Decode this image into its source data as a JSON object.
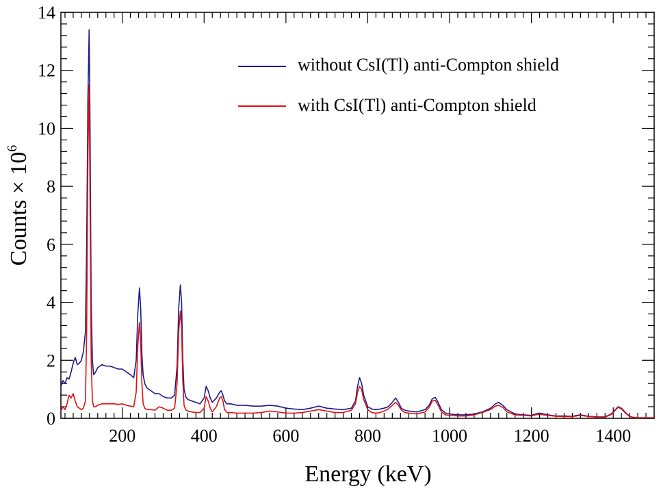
{
  "chart_data": {
    "type": "line",
    "title": "",
    "xlabel": "Energy (keV)",
    "ylabel_base": "Counts × 10",
    "ylabel_exponent": "6",
    "xlim": [
      50,
      1500
    ],
    "ylim": [
      0,
      14
    ],
    "x_ticks": [
      200,
      400,
      600,
      800,
      1000,
      1200,
      1400
    ],
    "x_tick_labels": [
      "200",
      "400",
      "600",
      "800",
      "1000",
      "1200",
      "1400"
    ],
    "y_ticks": [
      0,
      2,
      4,
      6,
      8,
      10,
      12,
      14
    ],
    "y_tick_labels": [
      "0",
      "2",
      "4",
      "6",
      "8",
      "10",
      "12",
      "14"
    ],
    "grid": false,
    "legend_position": "top-right",
    "series": [
      {
        "name": "without CsI(Tl) anti-Compton shield",
        "color": "#1a1a8c",
        "x": [
          50,
          55,
          60,
          65,
          70,
          75,
          80,
          85,
          90,
          95,
          100,
          105,
          110,
          113,
          116,
          119,
          121,
          124,
          127,
          130,
          135,
          140,
          150,
          160,
          170,
          180,
          190,
          200,
          210,
          220,
          228,
          234,
          238,
          242,
          245,
          248,
          251,
          255,
          260,
          270,
          280,
          290,
          300,
          310,
          320,
          328,
          334,
          338,
          342,
          345,
          348,
          351,
          355,
          360,
          370,
          380,
          390,
          400,
          405,
          410,
          415,
          420,
          430,
          438,
          442,
          446,
          450,
          456,
          465,
          480,
          500,
          520,
          540,
          560,
          580,
          600,
          620,
          640,
          660,
          680,
          700,
          720,
          740,
          760,
          770,
          775,
          780,
          785,
          790,
          800,
          810,
          820,
          830,
          840,
          850,
          860,
          868,
          875,
          882,
          890,
          900,
          920,
          940,
          950,
          958,
          965,
          972,
          980,
          990,
          1000,
          1020,
          1040,
          1060,
          1080,
          1100,
          1112,
          1120,
          1130,
          1140,
          1160,
          1180,
          1200,
          1210,
          1220,
          1240,
          1260,
          1280,
          1300,
          1310,
          1320,
          1340,
          1360,
          1380,
          1395,
          1405,
          1412,
          1420,
          1430,
          1440,
          1450,
          1460,
          1480,
          1500
        ],
        "y": [
          1.1,
          1.3,
          1.2,
          1.4,
          1.35,
          1.6,
          1.9,
          2.1,
          1.85,
          1.9,
          2.0,
          2.3,
          3.0,
          6.0,
          11.0,
          13.4,
          10.5,
          4.0,
          2.0,
          1.5,
          1.6,
          1.75,
          1.85,
          1.8,
          1.8,
          1.75,
          1.7,
          1.7,
          1.6,
          1.5,
          1.4,
          2.0,
          3.6,
          4.5,
          3.8,
          2.2,
          1.5,
          1.2,
          1.05,
          0.95,
          0.85,
          0.85,
          0.75,
          0.7,
          0.7,
          0.8,
          1.8,
          3.8,
          4.6,
          4.0,
          2.0,
          1.0,
          0.75,
          0.65,
          0.6,
          0.55,
          0.5,
          0.7,
          1.1,
          0.95,
          0.7,
          0.55,
          0.7,
          0.9,
          0.95,
          0.8,
          0.6,
          0.5,
          0.5,
          0.45,
          0.45,
          0.42,
          0.42,
          0.45,
          0.42,
          0.35,
          0.32,
          0.3,
          0.35,
          0.42,
          0.35,
          0.32,
          0.3,
          0.35,
          0.6,
          1.1,
          1.4,
          1.2,
          0.8,
          0.4,
          0.32,
          0.3,
          0.32,
          0.35,
          0.4,
          0.55,
          0.7,
          0.55,
          0.35,
          0.28,
          0.25,
          0.22,
          0.3,
          0.45,
          0.68,
          0.72,
          0.55,
          0.3,
          0.18,
          0.15,
          0.12,
          0.12,
          0.15,
          0.22,
          0.35,
          0.5,
          0.55,
          0.45,
          0.3,
          0.15,
          0.12,
          0.1,
          0.15,
          0.18,
          0.12,
          0.08,
          0.08,
          0.07,
          0.1,
          0.12,
          0.07,
          0.05,
          0.05,
          0.15,
          0.3,
          0.4,
          0.35,
          0.2,
          0.07,
          0.03,
          0.02,
          0.02,
          0.02
        ]
      },
      {
        "name": "with CsI(Tl) anti-Compton shield",
        "color": "#e01010",
        "x": [
          50,
          55,
          60,
          65,
          70,
          75,
          80,
          85,
          90,
          95,
          100,
          105,
          110,
          113,
          116,
          119,
          121,
          124,
          127,
          130,
          135,
          140,
          150,
          160,
          170,
          180,
          190,
          200,
          210,
          220,
          228,
          234,
          238,
          242,
          245,
          248,
          251,
          255,
          260,
          270,
          280,
          290,
          300,
          310,
          320,
          328,
          334,
          338,
          342,
          345,
          348,
          351,
          355,
          360,
          370,
          380,
          390,
          400,
          405,
          410,
          415,
          420,
          430,
          438,
          442,
          446,
          450,
          456,
          465,
          480,
          500,
          520,
          540,
          560,
          580,
          600,
          620,
          640,
          660,
          680,
          700,
          720,
          740,
          760,
          770,
          775,
          780,
          785,
          790,
          800,
          810,
          820,
          830,
          840,
          850,
          860,
          868,
          875,
          882,
          890,
          900,
          920,
          940,
          950,
          958,
          965,
          972,
          980,
          990,
          1000,
          1020,
          1040,
          1060,
          1080,
          1100,
          1112,
          1120,
          1130,
          1140,
          1160,
          1180,
          1200,
          1210,
          1220,
          1240,
          1260,
          1280,
          1300,
          1310,
          1320,
          1340,
          1360,
          1380,
          1395,
          1405,
          1412,
          1420,
          1430,
          1440,
          1450,
          1460,
          1480,
          1500
        ],
        "y": [
          0.25,
          0.4,
          0.3,
          0.5,
          0.8,
          0.7,
          0.85,
          0.6,
          0.4,
          0.35,
          0.3,
          0.35,
          0.6,
          3.0,
          9.0,
          11.5,
          8.0,
          2.0,
          0.6,
          0.4,
          0.4,
          0.45,
          0.5,
          0.5,
          0.5,
          0.5,
          0.48,
          0.5,
          0.45,
          0.42,
          0.4,
          0.9,
          2.5,
          3.3,
          2.6,
          1.2,
          0.5,
          0.35,
          0.3,
          0.3,
          0.28,
          0.4,
          0.35,
          0.28,
          0.28,
          0.35,
          1.2,
          3.0,
          3.7,
          3.1,
          1.3,
          0.45,
          0.3,
          0.25,
          0.22,
          0.2,
          0.2,
          0.35,
          0.75,
          0.6,
          0.35,
          0.22,
          0.4,
          0.7,
          0.75,
          0.6,
          0.3,
          0.2,
          0.2,
          0.18,
          0.18,
          0.18,
          0.2,
          0.25,
          0.22,
          0.18,
          0.18,
          0.2,
          0.25,
          0.3,
          0.25,
          0.2,
          0.2,
          0.28,
          0.5,
          0.9,
          1.1,
          1.0,
          0.65,
          0.3,
          0.2,
          0.18,
          0.2,
          0.25,
          0.32,
          0.45,
          0.55,
          0.45,
          0.28,
          0.2,
          0.18,
          0.15,
          0.22,
          0.38,
          0.6,
          0.62,
          0.45,
          0.22,
          0.12,
          0.1,
          0.08,
          0.08,
          0.12,
          0.2,
          0.3,
          0.42,
          0.45,
          0.38,
          0.22,
          0.12,
          0.1,
          0.08,
          0.12,
          0.14,
          0.1,
          0.07,
          0.06,
          0.06,
          0.08,
          0.1,
          0.06,
          0.04,
          0.04,
          0.13,
          0.28,
          0.38,
          0.32,
          0.18,
          0.06,
          0.03,
          0.02,
          0.02,
          0.02
        ]
      }
    ]
  }
}
